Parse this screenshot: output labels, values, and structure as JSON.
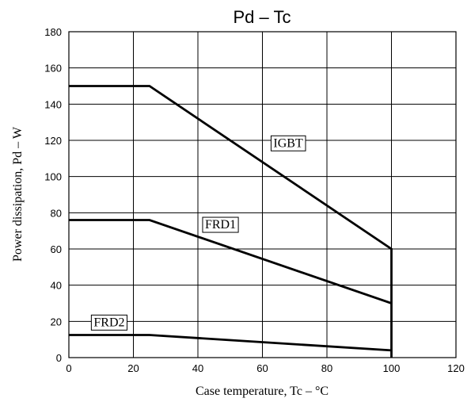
{
  "chart_data": {
    "type": "line",
    "title": "Pd  –  Tc",
    "xlabel": "Case temperature, Tc  –  °C",
    "ylabel": "Power dissipation, Pd  –  W",
    "xlim": [
      0,
      120
    ],
    "ylim": [
      0,
      180
    ],
    "xticks": [
      0,
      20,
      40,
      60,
      80,
      100,
      120
    ],
    "yticks": [
      0,
      20,
      40,
      60,
      80,
      100,
      120,
      140,
      160,
      180
    ],
    "grid": true,
    "series": [
      {
        "name": "IGBT",
        "x": [
          0,
          25,
          100,
          100
        ],
        "y": [
          150,
          150,
          60,
          0
        ]
      },
      {
        "name": "FRD1",
        "x": [
          0,
          25,
          100
        ],
        "y": [
          76,
          76,
          30
        ]
      },
      {
        "name": "FRD2",
        "x": [
          0,
          25,
          100
        ],
        "y": [
          12.5,
          12.5,
          4
        ]
      }
    ]
  }
}
